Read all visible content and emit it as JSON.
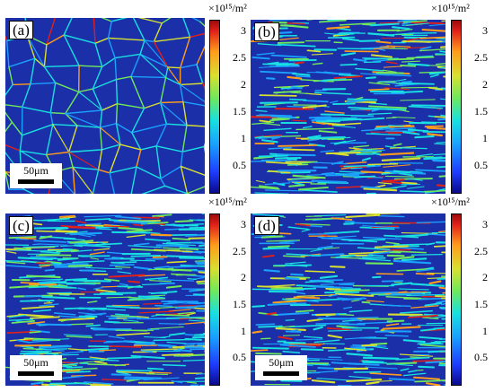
{
  "panels": [
    {
      "label": "(a)",
      "scale_bar": "50μm",
      "colorbar_unit": "×10¹⁵/m²"
    },
    {
      "label": "(b)",
      "scale_bar": "",
      "colorbar_unit": "×10¹⁵/m²"
    },
    {
      "label": "(c)",
      "scale_bar": "50μm",
      "colorbar_unit": "×10¹⁵/m²"
    },
    {
      "label": "(d)",
      "scale_bar": "50μm",
      "colorbar_unit": "×10¹⁵/m²"
    }
  ],
  "colorbar_ticks": [
    "3",
    "2.5",
    "2",
    "1.5",
    "1",
    "0.5"
  ],
  "colorbar_range": [
    0,
    3.2
  ],
  "colormap": [
    "#0a0a8c",
    "#1e3cff",
    "#1aa0ff",
    "#18e0e0",
    "#6fe85c",
    "#d8e030",
    "#ff9c1c",
    "#e0201a"
  ],
  "background_color": "#1b2fa8"
}
